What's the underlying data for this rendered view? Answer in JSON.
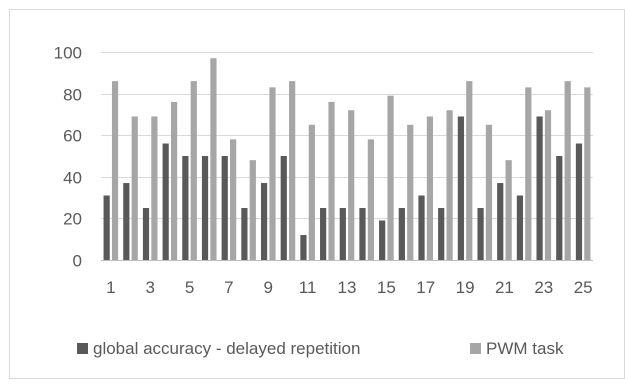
{
  "chart_data": {
    "type": "bar",
    "categories": [
      "1",
      "2",
      "3",
      "4",
      "5",
      "6",
      "7",
      "8",
      "9",
      "10",
      "11",
      "12",
      "13",
      "14",
      "15",
      "16",
      "17",
      "18",
      "19",
      "20",
      "21",
      "22",
      "23",
      "24",
      "25"
    ],
    "x_tick_labels": [
      "1",
      "3",
      "5",
      "7",
      "9",
      "11",
      "13",
      "15",
      "17",
      "19",
      "21",
      "23",
      "25"
    ],
    "series": [
      {
        "name": "global accuracy - delayed repetition",
        "color": "#595959",
        "values": [
          31,
          37,
          25,
          56,
          50,
          50,
          50,
          25,
          37,
          50,
          12,
          25,
          25,
          25,
          19,
          25,
          31,
          25,
          69,
          25,
          37,
          31,
          69,
          50,
          56
        ]
      },
      {
        "name": "PWM task",
        "color": "#a6a6a6",
        "values": [
          86,
          69,
          69,
          76,
          86,
          97,
          58,
          48,
          83,
          86,
          65,
          76,
          72,
          58,
          79,
          65,
          69,
          72,
          86,
          65,
          48,
          83,
          72,
          86,
          83
        ]
      }
    ],
    "ylim": [
      0,
      100
    ],
    "y_ticks": [
      0,
      20,
      40,
      60,
      80,
      100
    ],
    "grid": true,
    "legend": "bottom"
  }
}
